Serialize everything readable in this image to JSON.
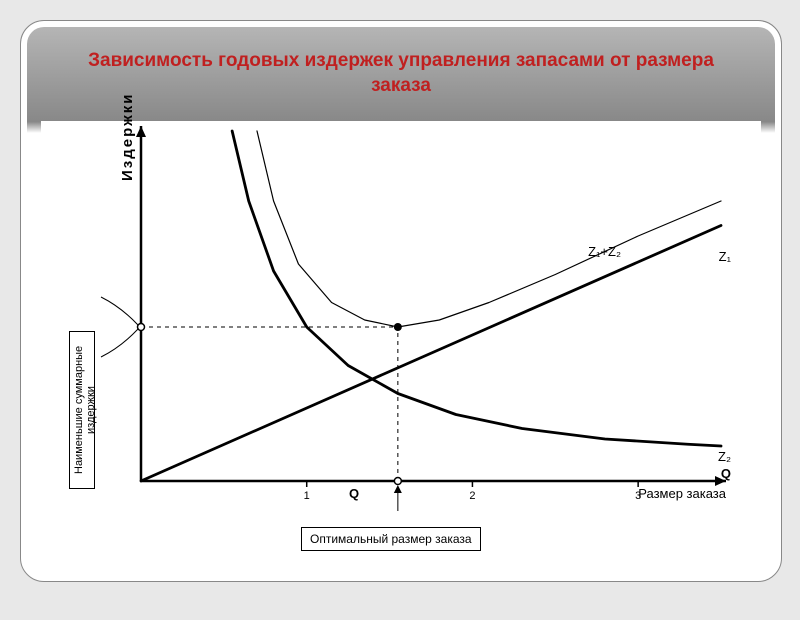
{
  "title": "Зависимость годовых издержек управления запасами от размера заказа",
  "chart": {
    "type": "line",
    "background_color": "#ffffff",
    "axis_color": "#000000",
    "line_width_heavy": 2.8,
    "line_width_light": 1.2,
    "ylabel": "Издержки",
    "xlabel": "Размер заказа",
    "x_symbol": "Q",
    "xlim": [
      0,
      3.5
    ],
    "ylim": [
      0,
      1.0
    ],
    "xticks": [
      1,
      2,
      3
    ],
    "optimum_x": 1.55,
    "optimum_y": 0.44,
    "min_cost_y": 0.44,
    "series": {
      "z1_linear": {
        "label": "Z₁",
        "color": "#000000",
        "width": 2.8,
        "points": [
          [
            0,
            0
          ],
          [
            3.5,
            0.73
          ]
        ]
      },
      "z2_hyperbola": {
        "label": "Z₂",
        "color": "#000000",
        "width": 2.8,
        "points": [
          [
            0.55,
            1.0
          ],
          [
            0.65,
            0.8
          ],
          [
            0.8,
            0.6
          ],
          [
            1.0,
            0.44
          ],
          [
            1.25,
            0.33
          ],
          [
            1.55,
            0.25
          ],
          [
            1.9,
            0.19
          ],
          [
            2.3,
            0.15
          ],
          [
            2.8,
            0.12
          ],
          [
            3.3,
            0.105
          ],
          [
            3.5,
            0.1
          ]
        ]
      },
      "total": {
        "label": "Z₁+Z₂",
        "color": "#000000",
        "width": 1.2,
        "points": [
          [
            0.7,
            1.0
          ],
          [
            0.8,
            0.8
          ],
          [
            0.95,
            0.62
          ],
          [
            1.15,
            0.51
          ],
          [
            1.35,
            0.46
          ],
          [
            1.55,
            0.44
          ],
          [
            1.8,
            0.46
          ],
          [
            2.1,
            0.51
          ],
          [
            2.5,
            0.59
          ],
          [
            3.0,
            0.7
          ],
          [
            3.5,
            0.8
          ]
        ]
      }
    },
    "annotations": {
      "min_cost_box": "Наименьшие суммарные издержки",
      "optimal_box": "Оптимальный размер заказа"
    },
    "label_fontsize": 13
  },
  "colors": {
    "title_color": "#c0392b",
    "header_gradient_top": "#b8b8b8",
    "header_gradient_mid": "#888888",
    "slide_bg": "#ffffff",
    "page_bg": "#e8e8e8"
  }
}
